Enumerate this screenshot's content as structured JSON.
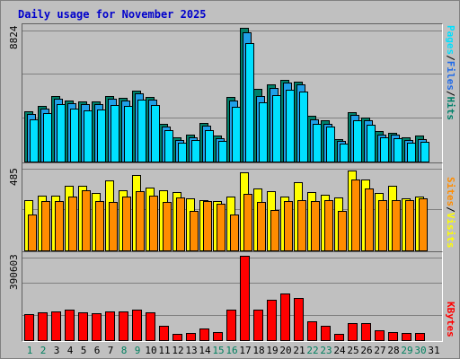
{
  "title": "Daily usage for November 2025",
  "labels": {
    "sep": "/",
    "pages": "Pages",
    "files": "Files",
    "hits": "Hits",
    "sites": "Sites",
    "visits": "Visits",
    "kbytes": "KBytes"
  },
  "max_labels": {
    "hits": "8824",
    "visits": "485",
    "kbytes": "390603"
  },
  "colors": {
    "pages": "#00e0ff",
    "files": "#1fa0e8",
    "hits": "#00806a",
    "visits": "#ffff00",
    "sites": "#ff8c00",
    "kbytes": "#ff0000",
    "title": "#0000cc",
    "weekend": "#00805f",
    "weekday": "#000000"
  },
  "chart_data": {
    "type": "bar",
    "title": "Daily usage for November 2025",
    "categories": [
      "1",
      "2",
      "3",
      "4",
      "5",
      "6",
      "7",
      "8",
      "9",
      "10",
      "11",
      "12",
      "13",
      "14",
      "15",
      "16",
      "17",
      "18",
      "19",
      "20",
      "21",
      "22",
      "23",
      "24",
      "25",
      "26",
      "27",
      "28",
      "29",
      "30",
      "31"
    ],
    "weekend_days": [
      "1",
      "2",
      "8",
      "9",
      "15",
      "16",
      "22",
      "23",
      "29",
      "30"
    ],
    "panels": [
      {
        "name": "hits-files-pages",
        "ymax": 8824,
        "series": [
          {
            "name": "Hits",
            "values": [
              3300,
              3700,
              4300,
              4000,
              3950,
              3950,
              4300,
              4200,
              4650,
              4250,
              2500,
              1600,
              1800,
              2550,
              1720,
              4250,
              8800,
              4800,
              5100,
              5400,
              5300,
              3000,
              2700,
              1500,
              3250,
              2900,
              2000,
              1900,
              1600,
              1700,
              0
            ]
          },
          {
            "name": "Files",
            "values": [
              3150,
              3500,
              4150,
              3850,
              3800,
              3800,
              4150,
              4050,
              4500,
              4100,
              2300,
              1450,
              1600,
              2350,
              1550,
              4000,
              8550,
              4300,
              4850,
              5200,
              5100,
              2800,
              2500,
              1350,
              3050,
              2700,
              1800,
              1750,
              1450,
              1500,
              0
            ]
          },
          {
            "name": "Pages",
            "values": [
              2800,
              3200,
              3800,
              3500,
              3400,
              3450,
              3750,
              3700,
              4100,
              3750,
              2100,
              1250,
              1400,
              2100,
              1350,
              3600,
              7800,
              3900,
              4400,
              4750,
              4600,
              2500,
              2300,
              1200,
              2700,
              2400,
              1600,
              1550,
              1250,
              1300,
              0
            ]
          }
        ]
      },
      {
        "name": "visits-sites",
        "ymax": 485,
        "series": [
          {
            "name": "Visits",
            "values": [
              290,
              320,
              320,
              375,
              375,
              335,
              405,
              350,
              440,
              365,
              350,
              340,
              300,
              290,
              285,
              315,
              455,
              360,
              345,
              315,
              395,
              340,
              325,
              310,
              465,
              410,
              335,
              375,
              305,
              315,
              0
            ]
          },
          {
            "name": "Sites",
            "values": [
              210,
              285,
              285,
              315,
              350,
              285,
              280,
              315,
              345,
              320,
              280,
              310,
              230,
              285,
              270,
              210,
              330,
              280,
              235,
              285,
              290,
              285,
              290,
              230,
              410,
              360,
              290,
              290,
              290,
              300,
              0
            ]
          }
        ]
      },
      {
        "name": "kbytes",
        "ymax": 390603,
        "series": [
          {
            "name": "KBytes",
            "values": [
              120000,
              128000,
              135000,
              140000,
              130000,
              125000,
              132000,
              132000,
              140000,
              128000,
              68000,
              30000,
              32000,
              55000,
              38000,
              142000,
              390000,
              143000,
              185000,
              215000,
              195000,
              88000,
              68000,
              30000,
              80000,
              78000,
              46000,
              38000,
              35000,
              35000,
              0
            ]
          }
        ]
      }
    ]
  }
}
